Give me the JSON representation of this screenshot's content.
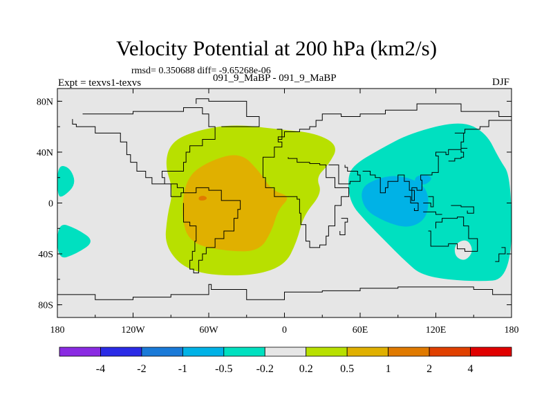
{
  "chart_data": {
    "type": "heatmap",
    "title": "Velocity Potential at 200 hPa (km2/s)",
    "stats": "rmsd= 0.350688  diff= -9.65268e-06",
    "left_label": "Expt = texvs1-texvs",
    "center_label": "091_9_MaBP - 091_9_MaBP",
    "right_label": "DJF",
    "x_ticks": [
      {
        "value": -180,
        "label": "180"
      },
      {
        "value": -120,
        "label": "120W"
      },
      {
        "value": -60,
        "label": "60W"
      },
      {
        "value": 0,
        "label": "0"
      },
      {
        "value": 60,
        "label": "60E"
      },
      {
        "value": 120,
        "label": "120E"
      },
      {
        "value": 180,
        "label": "180"
      }
    ],
    "y_ticks": [
      {
        "value": 80,
        "label": "80N"
      },
      {
        "value": 40,
        "label": "40N"
      },
      {
        "value": 0,
        "label": "0"
      },
      {
        "value": -40,
        "label": "40S"
      },
      {
        "value": -80,
        "label": "80S"
      }
    ],
    "xlim": [
      -180,
      180
    ],
    "ylim": [
      -90,
      90
    ],
    "colorbar": {
      "colors": [
        "#8a2be2",
        "#2b2be6",
        "#1a7ad8",
        "#00b2e6",
        "#00e0c0",
        "#e6e6e6",
        "#b8e000",
        "#e0b000",
        "#e07a00",
        "#e04000",
        "#e00000"
      ],
      "levels": [
        "-4",
        "-2",
        "-1",
        "-0.5",
        "-0.2",
        "0.2",
        "0.5",
        "1",
        "2",
        "4"
      ]
    },
    "regions": [
      {
        "name": "positive-0.2-0.5",
        "level": "0.2 to 0.5",
        "color": "#b8e000",
        "center": [
          -65,
          15
        ]
      },
      {
        "name": "positive-0.5-1",
        "level": "0.5 to 1",
        "color": "#e0b000",
        "center": [
          -60,
          5
        ]
      },
      {
        "name": "positive-1-2",
        "level": "1 to 2",
        "color": "#e07a00",
        "center": [
          -65,
          5
        ]
      },
      {
        "name": "negative-east",
        "level": "-0.5 to -0.2",
        "color": "#00e0c0",
        "center": [
          120,
          10
        ]
      },
      {
        "name": "negative-east-core",
        "level": "-1 to -0.5",
        "color": "#00b2e6",
        "center": [
          100,
          5
        ]
      },
      {
        "name": "negative-west-north",
        "level": "-0.5 to -0.2",
        "color": "#00e0c0",
        "center": [
          -160,
          15
        ]
      },
      {
        "name": "negative-west-south",
        "level": "-0.5 to -0.2",
        "color": "#00e0c0",
        "center": [
          -160,
          -30
        ]
      }
    ]
  }
}
